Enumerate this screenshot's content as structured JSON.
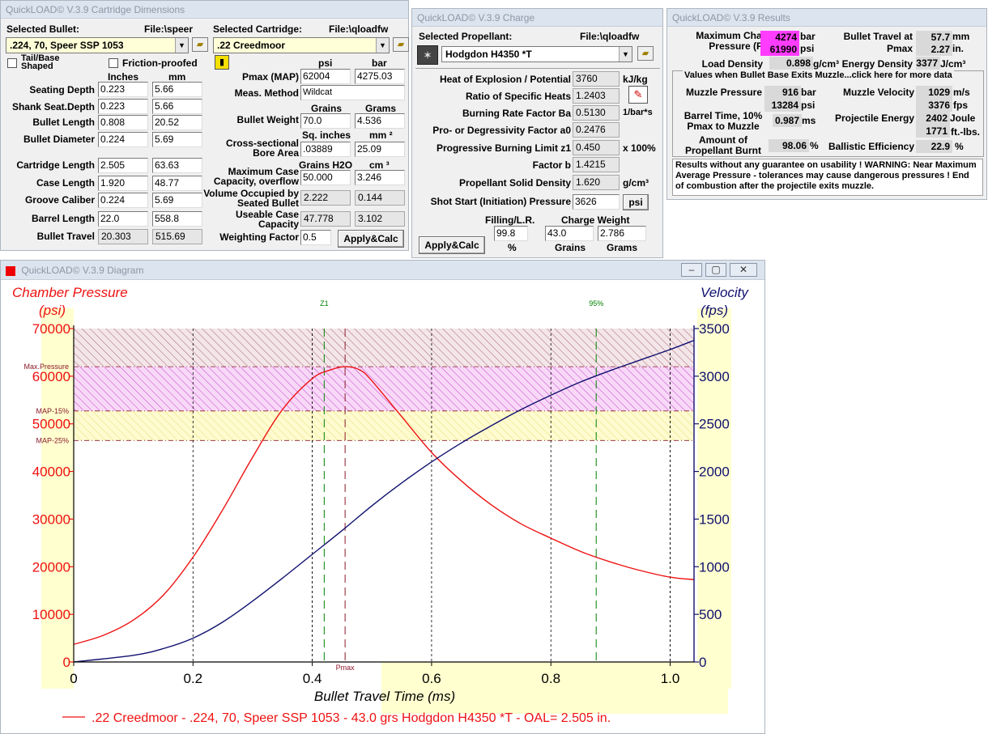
{
  "cartridge_window": {
    "title": "QuickLOAD© V.3.9 Cartridge Dimensions",
    "selected_bullet_label": "Selected Bullet:",
    "bullet_file": "File:\\speer",
    "bullet_value": ".224, 70, Speer SSP 1053",
    "selected_cartridge_label": "Selected Cartridge:",
    "cartridge_file": "File:\\qloadfw",
    "cartridge_value": ".22 Creedmoor",
    "tail_base_label": "Tail/Base Shaped",
    "friction_label": "Friction-proofed",
    "col_inches": "Inches",
    "col_mm": "mm",
    "rows": [
      {
        "label": "Seating Depth",
        "in": "0.223",
        "mm": "5.66"
      },
      {
        "label": "Shank Seat.Depth",
        "in": "0.223",
        "mm": "5.66"
      },
      {
        "label": "Bullet Length",
        "in": "0.808",
        "mm": "20.52"
      },
      {
        "label": "Bullet Diameter",
        "in": "0.224",
        "mm": "5.69"
      },
      {
        "label": "Cartridge Length",
        "in": "2.505",
        "mm": "63.63"
      },
      {
        "label": "Case Length",
        "in": "1.920",
        "mm": "48.77"
      },
      {
        "label": "Groove Caliber",
        "in": "0.224",
        "mm": "5.69"
      },
      {
        "label": "Barrel Length",
        "in": "22.0",
        "mm": "558.8"
      },
      {
        "label": "Bullet Travel",
        "in": "20.303",
        "mm": "515.69"
      }
    ],
    "col_psi": "psi",
    "col_bar": "bar",
    "pmax_label": "Pmax (MAP)",
    "pmax_psi": "62004",
    "pmax_bar": "4275.03",
    "meas_label": "Meas. Method",
    "meas_value": "Wildcat",
    "col_grains": "Grains",
    "col_grams": "Grams",
    "weight_label": "Bullet Weight",
    "weight_gr": "70.0",
    "weight_g": "4.536",
    "col_sqin": "Sq. inches",
    "col_mm2": "mm ²",
    "bore_label": "Cross-sectional Bore Area",
    "bore_sqin": ".03889",
    "bore_mm2": "25.09",
    "col_h2o": "Grains H2O",
    "col_cm3": "cm ³",
    "maxcase_label": "Maximum Case Capacity, overflow",
    "maxcase_gr": "50.000",
    "maxcase_cm3": "3.246",
    "volocc_label": "Volume Occupied by Seated Bullet",
    "volocc_gr": "2.222",
    "volocc_cm3": "0.144",
    "useable_label": "Useable Case Capacity",
    "useable_gr": "47.778",
    "useable_cm3": "3.102",
    "wf_label": "Weighting Factor",
    "wf_value": "0.5",
    "apply_label": "Apply&Calc"
  },
  "charge_window": {
    "title": "QuickLOAD© V.3.9 Charge",
    "propellant_label": "Selected Propellant:",
    "propellant_file": "File:\\qloadfw",
    "propellant_value": "Hodgdon H4350 *T",
    "rows": [
      {
        "label": "Heat of Explosion / Potential",
        "value": "3760",
        "unit": "kJ/kg"
      },
      {
        "label": "Ratio of Specific Heats",
        "value": "1.2403",
        "unit": ""
      },
      {
        "label": "Burning Rate Factor  Ba",
        "value": "0.5130",
        "unit": "1/bar*s"
      },
      {
        "label": "Pro- or Degressivity Factor  a0",
        "value": "0.2476",
        "unit": ""
      },
      {
        "label": "Progressive Burning Limit z1",
        "value": "0.450",
        "unit": "x 100%"
      },
      {
        "label": "Factor  b",
        "value": "1.4215",
        "unit": ""
      },
      {
        "label": "Propellant Solid Density",
        "value": "1.620",
        "unit": "g/cm³"
      },
      {
        "label": "Shot Start (Initiation) Pressure",
        "value": "3626",
        "unit": "psi"
      }
    ],
    "filling_label": "Filling/L.R.",
    "filling_value": "99.8",
    "filling_unit": "%",
    "charge_label": "Charge Weight",
    "charge_grains": "43.0",
    "charge_grams": "2.786",
    "grains_unit": "Grains",
    "grams_unit": "Grams",
    "apply_label": "Apply&Calc"
  },
  "results_window": {
    "title": "QuickLOAD© V.3.9 Results",
    "max_chamber_label": "Maximum Chamber Pressure (Pmax)",
    "pmax_bar": "4274",
    "pmax_bar_unit": "bar",
    "pmax_psi": "61990",
    "pmax_psi_unit": "psi",
    "travel_pmax_label": "Bullet Travel at Pmax",
    "travel_mm": "57.7",
    "travel_mm_unit": "mm",
    "travel_in": "2.27",
    "travel_in_unit": "in.",
    "load_density_label": "Load Density",
    "load_density": "0.898",
    "load_density_unit": "g/cm³",
    "energy_density_label": "Energy Density",
    "energy_density": "3377",
    "energy_density_unit": "J/cm³",
    "muzzle_header": "Values when Bullet Base Exits Muzzle...click here for more data",
    "muzzle_pressure_label": "Muzzle Pressure",
    "muzzle_pressure_bar": "916",
    "muzzle_pressure_bar_unit": "bar",
    "muzzle_pressure_psi": "13284",
    "muzzle_pressure_psi_unit": "psi",
    "muzzle_velocity_label": "Muzzle Velocity",
    "muzzle_velocity_ms": "1029",
    "muzzle_velocity_ms_unit": "m/s",
    "muzzle_velocity_fps": "3376",
    "muzzle_velocity_fps_unit": "fps",
    "barrel_time_label": "Barrel Time, 10% Pmax to Muzzle",
    "barrel_time": "0.987",
    "barrel_time_unit": "ms",
    "projectile_energy_label": "Projectile Energy",
    "energy_joule": "2402",
    "energy_joule_unit": "Joule",
    "energy_ftlbs": "1771",
    "energy_ftlbs_unit": "ft.-lbs.",
    "burnt_label": "Amount of Propellant Burnt",
    "burnt": "98.06",
    "burnt_unit": "%",
    "ballistic_eff_label": "Ballistic Efficiency",
    "ballistic_eff": "22.9",
    "ballistic_eff_unit": "%",
    "warning": "Results without any guarantee on usability !  WARNING: Near Maximum Average Pressure - tolerances may cause dangerous pressures !  End of combustion after the projectile exits muzzle."
  },
  "diagram_window": {
    "title": "QuickLOAD© V.3.9 Diagram",
    "legend_text": ".22 Creedmoor - .224, 70, Speer SSP 1053 - 43.0 grs Hodgdon H4350 *T - OAL= 2.505 in.",
    "colors": {
      "pressure": "#ee1111",
      "velocity": "#101070",
      "marker": "#008000"
    }
  },
  "chart_data": {
    "type": "line",
    "xlabel": "Bullet Travel Time (ms)",
    "ylabel_left": "Chamber Pressure",
    "ylabel_left_unit": "(psi)",
    "ylabel_right": "Velocity",
    "ylabel_right_unit": "(fps)",
    "xlim": [
      0,
      1.04
    ],
    "ylim_left": [
      0,
      70000
    ],
    "ylim_right": [
      0,
      3500
    ],
    "x_ticks": [
      "0",
      "0.2",
      "0.4",
      "0.6",
      "0.8",
      "1.0"
    ],
    "y_left_ticks": [
      "0",
      "10000",
      "20000",
      "30000",
      "40000",
      "50000",
      "60000",
      "70000"
    ],
    "y_right_ticks": [
      "0",
      "500",
      "1000",
      "1500",
      "2000",
      "2500",
      "3000",
      "3500"
    ],
    "band_labels": {
      "max_pressure": "Max.Pressure",
      "map15": "MAP-15%",
      "map25": "MAP-25%"
    },
    "band_levels_psi": {
      "max_pressure": 61990,
      "map15": 52700,
      "map25": 46500
    },
    "markers": {
      "z1": {
        "label": "Z1",
        "x": 0.42
      },
      "p95": {
        "label": "95%",
        "x": 0.876
      },
      "pmax": {
        "label": "Pmax",
        "x": 0.455
      }
    },
    "series": [
      {
        "name": "Chamber Pressure",
        "axis": "left",
        "x": [
          0,
          0.05,
          0.1,
          0.15,
          0.2,
          0.25,
          0.3,
          0.35,
          0.4,
          0.43,
          0.455,
          0.48,
          0.5,
          0.55,
          0.6,
          0.65,
          0.7,
          0.75,
          0.8,
          0.85,
          0.9,
          0.95,
          1.0,
          1.04
        ],
        "values": [
          3700,
          5600,
          8800,
          14000,
          22000,
          32000,
          43000,
          53000,
          59500,
          61300,
          61990,
          61300,
          59000,
          51500,
          44000,
          38000,
          33000,
          29000,
          26000,
          23200,
          21000,
          19200,
          17800,
          17300
        ]
      },
      {
        "name": "Velocity",
        "axis": "right",
        "x": [
          0,
          0.1,
          0.15,
          0.2,
          0.25,
          0.3,
          0.35,
          0.4,
          0.45,
          0.5,
          0.55,
          0.6,
          0.65,
          0.7,
          0.75,
          0.8,
          0.85,
          0.9,
          0.95,
          1.0,
          1.04
        ],
        "values": [
          0,
          70,
          140,
          250,
          420,
          640,
          880,
          1130,
          1380,
          1640,
          1880,
          2100,
          2300,
          2480,
          2650,
          2800,
          2940,
          3060,
          3170,
          3280,
          3376
        ]
      }
    ]
  }
}
